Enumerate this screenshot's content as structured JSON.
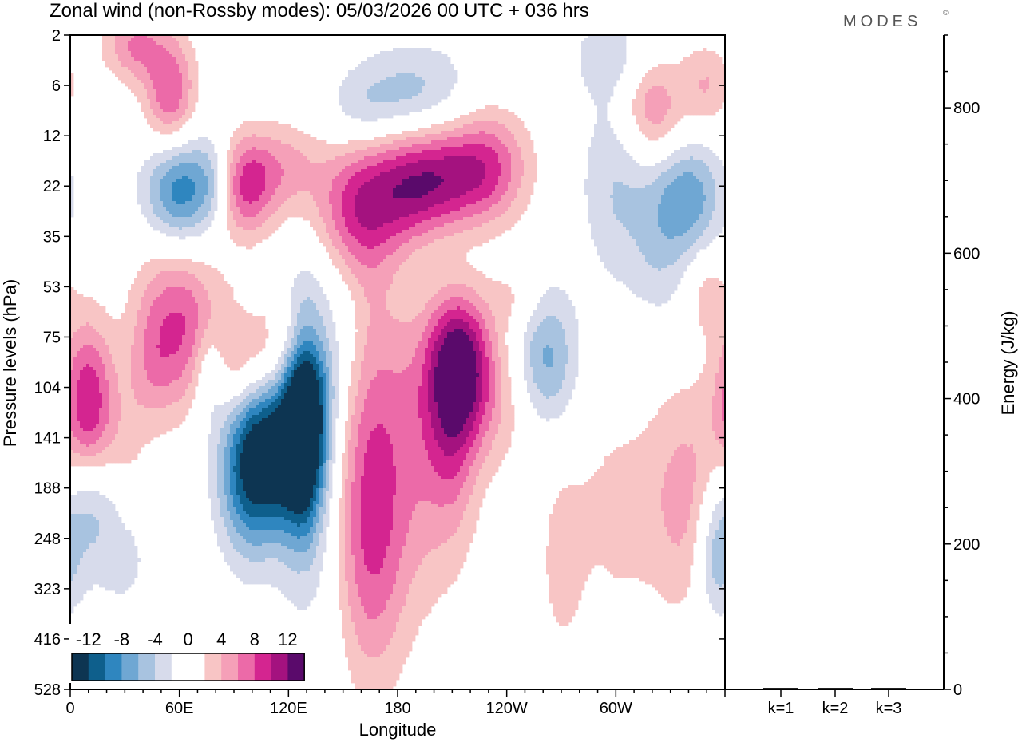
{
  "chart_data": {
    "type": "heatmap",
    "title": "Zonal wind (non-Rossby modes):  05/03/2026  00 UTC  + 036 hrs",
    "brand": "MODES",
    "brand_mark": "©",
    "xlabel": "Longitude",
    "ylabel": "Pressure levels (hPa)",
    "x_ticks": [
      "0",
      "60E",
      "120E",
      "180",
      "120W",
      "60W"
    ],
    "x_tick_values": [
      0,
      60,
      120,
      180,
      240,
      300
    ],
    "xlim": [
      0,
      360
    ],
    "y_ticks": [
      "2",
      "6",
      "12",
      "22",
      "35",
      "53",
      "75",
      "104",
      "141",
      "188",
      "248",
      "323",
      "416",
      "528"
    ],
    "colorbar": {
      "tick_labels": [
        "-12",
        "-8",
        "-4",
        "0",
        "4",
        "8",
        "12"
      ],
      "colors": [
        "#0d3552",
        "#0e5f8c",
        "#2f86bf",
        "#6fa7d3",
        "#a8c3e0",
        "#d7dbeb",
        "#ffffff",
        "#ffffff",
        "#f8c5c5",
        "#f5a0b8",
        "#ec6aa8",
        "#d42590",
        "#a4127f",
        "#5a0a6b"
      ]
    },
    "blobs": [
      {
        "lon": 10,
        "lev": 7.4,
        "rx": 10,
        "ry": 1.2,
        "v": 10
      },
      {
        "lon": 30,
        "lev": 8.5,
        "rx": 10,
        "ry": 1.0,
        "v": 3
      },
      {
        "lon": 55,
        "lev": 5.4,
        "rx": 14,
        "ry": 1.3,
        "v": 5
      },
      {
        "lon": 72,
        "lev": 6.0,
        "rx": 12,
        "ry": 1.0,
        "v": 5
      },
      {
        "lon": 45,
        "lev": 6.5,
        "rx": 10,
        "ry": 0.9,
        "v": 4
      },
      {
        "lon": 76,
        "lev": 6.6,
        "rx": 7,
        "ry": 0.8,
        "v": -6
      },
      {
        "lon": 112,
        "lev": 8.1,
        "rx": 14,
        "ry": 1.2,
        "v": -12
      },
      {
        "lon": 128,
        "lev": 7.7,
        "rx": 8,
        "ry": 1.5,
        "v": -13
      },
      {
        "lon": 97,
        "lev": 8.7,
        "rx": 12,
        "ry": 1.2,
        "v": -8
      },
      {
        "lon": 135,
        "lev": 6.9,
        "rx": 10,
        "ry": 1.4,
        "v": -5
      },
      {
        "lon": 150,
        "lev": 5.8,
        "rx": 10,
        "ry": 1.2,
        "v": -3
      },
      {
        "lon": 103,
        "lev": 6.6,
        "rx": 18,
        "ry": 0.8,
        "v": 6
      },
      {
        "lon": 128,
        "lev": 6.0,
        "rx": 14,
        "ry": 0.6,
        "v": 3
      },
      {
        "lon": 60,
        "lev": 3.1,
        "rx": 14,
        "ry": 0.8,
        "v": -10
      },
      {
        "lon": 80,
        "lev": 2.9,
        "rx": 8,
        "ry": 0.6,
        "v": -4
      },
      {
        "lon": 95,
        "lev": 3.0,
        "rx": 12,
        "ry": 0.7,
        "v": 9
      },
      {
        "lon": 118,
        "lev": 2.6,
        "rx": 14,
        "ry": 0.6,
        "v": 4
      },
      {
        "lon": 176,
        "lev": 3.2,
        "rx": 26,
        "ry": 0.9,
        "v": 7
      },
      {
        "lon": 200,
        "lev": 2.9,
        "rx": 20,
        "ry": 0.8,
        "v": 8
      },
      {
        "lon": 230,
        "lev": 2.6,
        "rx": 16,
        "ry": 0.8,
        "v": 7
      },
      {
        "lon": 155,
        "lev": 3.8,
        "rx": 14,
        "ry": 1.0,
        "v": 4
      },
      {
        "lon": 162,
        "lev": 8.7,
        "rx": 14,
        "ry": 2.8,
        "v": 6
      },
      {
        "lon": 190,
        "lev": 8.2,
        "rx": 20,
        "ry": 2.2,
        "v": 5
      },
      {
        "lon": 215,
        "lev": 6.4,
        "rx": 13,
        "ry": 1.0,
        "v": 10
      },
      {
        "lon": 210,
        "lev": 7.8,
        "rx": 10,
        "ry": 1.5,
        "v": 5
      },
      {
        "lon": 233,
        "lev": 7.4,
        "rx": 22,
        "ry": 0.9,
        "v": 3
      },
      {
        "lon": 262,
        "lev": 6.5,
        "rx": 12,
        "ry": 1.0,
        "v": -7
      },
      {
        "lon": 205,
        "lev": 4.1,
        "rx": 18,
        "ry": 0.9,
        "v": -3
      },
      {
        "lon": 300,
        "lev": 3.0,
        "rx": 14,
        "ry": 1.4,
        "v": -4
      },
      {
        "lon": 340,
        "lev": 3.2,
        "rx": 14,
        "ry": 0.8,
        "v": -7
      },
      {
        "lon": 325,
        "lev": 4.4,
        "rx": 12,
        "ry": 1.0,
        "v": -3
      },
      {
        "lon": 190,
        "lev": 1.2,
        "rx": 22,
        "ry": 0.7,
        "v": -5
      },
      {
        "lon": 160,
        "lev": 1.5,
        "rx": 14,
        "ry": 0.6,
        "v": -3
      },
      {
        "lon": 320,
        "lev": 1.5,
        "rx": 12,
        "ry": 0.7,
        "v": 6
      },
      {
        "lon": 350,
        "lev": 1.0,
        "rx": 10,
        "ry": 0.6,
        "v": 4
      },
      {
        "lon": 55,
        "lev": 1.2,
        "rx": 10,
        "ry": 0.8,
        "v": 8
      },
      {
        "lon": 35,
        "lev": 0.2,
        "rx": 12,
        "ry": 0.5,
        "v": 6
      },
      {
        "lon": 295,
        "lev": 0.4,
        "rx": 14,
        "ry": 0.6,
        "v": -3
      },
      {
        "lon": 10,
        "lev": 9.2,
        "rx": 12,
        "ry": 0.9,
        "v": -6
      },
      {
        "lon": 30,
        "lev": 10.2,
        "rx": 16,
        "ry": 1.2,
        "v": -2.5
      },
      {
        "lon": 340,
        "lev": 9.2,
        "rx": 16,
        "ry": 1.6,
        "v": 5
      },
      {
        "lon": 355,
        "lev": 10.4,
        "rx": 8,
        "ry": 0.9,
        "v": -6
      },
      {
        "lon": 300,
        "lev": 9.5,
        "rx": 16,
        "ry": 1.6,
        "v": 2.5
      },
      {
        "lon": 140,
        "lev": 10.0,
        "rx": 16,
        "ry": 2.4,
        "v": -2.5
      },
      {
        "lon": 165,
        "lev": 10.6,
        "rx": 14,
        "ry": 1.6,
        "v": 3
      },
      {
        "lon": 270,
        "lev": 10.5,
        "rx": 10,
        "ry": 1.6,
        "v": 2.5
      },
      {
        "lon": 245,
        "lev": 5.2,
        "rx": 10,
        "ry": 0.5,
        "v": 2.5
      },
      {
        "lon": 350,
        "lev": 5.1,
        "rx": 8,
        "ry": 0.6,
        "v": 3
      }
    ],
    "energy_axis": {
      "label": "Energy (J/kg)",
      "ticks": [
        0,
        200,
        400,
        600,
        800
      ],
      "range": [
        0,
        900
      ],
      "categories": [
        "k=1",
        "k=2",
        "k=3"
      ],
      "values": [
        1.5,
        1.2,
        1.0
      ]
    }
  }
}
